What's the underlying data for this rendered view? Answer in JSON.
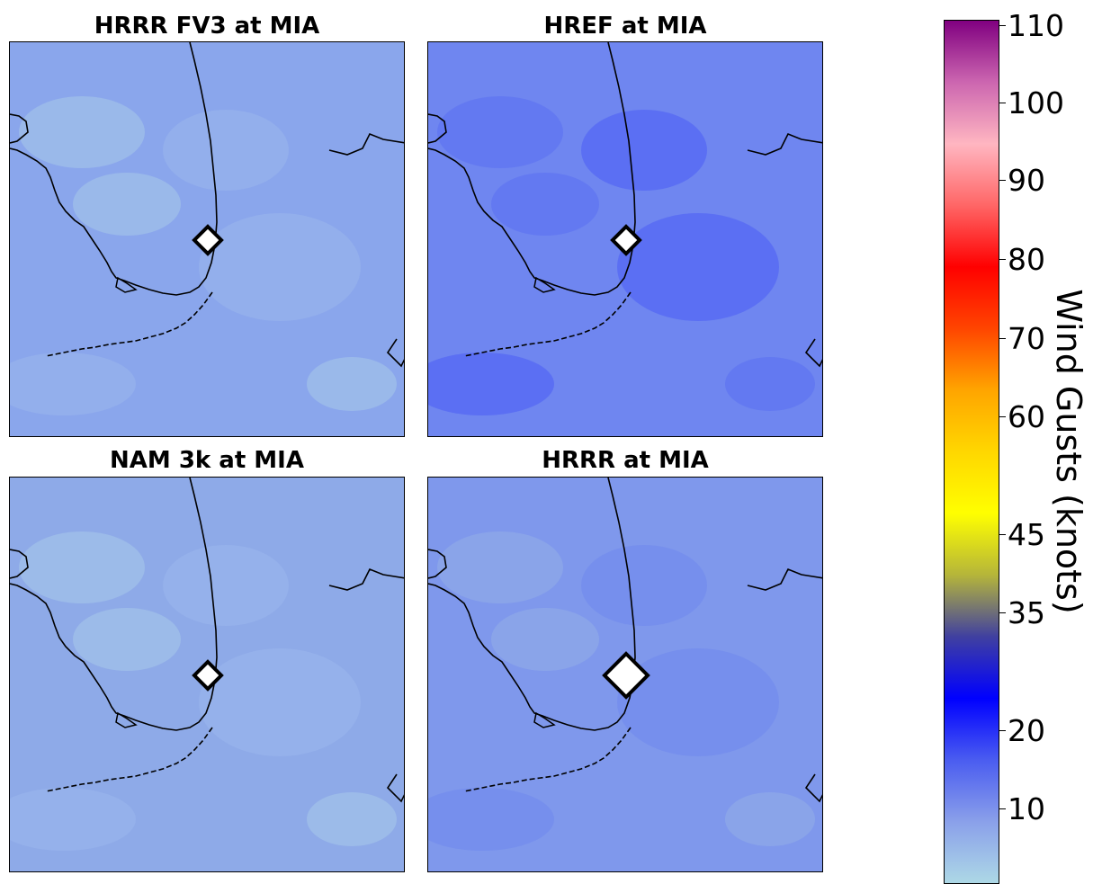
{
  "panels": [
    {
      "title": "HRRR FV3 at MIA",
      "base_color": "#8aa6ec",
      "shade": "light",
      "marker": "normal"
    },
    {
      "title": "HREF at MIA",
      "base_color": "#6f86f0",
      "shade": "dark",
      "marker": "normal"
    },
    {
      "title": "NAM 3k at MIA",
      "base_color": "#8eaae8",
      "shade": "light",
      "marker": "normal"
    },
    {
      "title": "HRRR at MIA",
      "base_color": "#7f98ec",
      "shade": "medium",
      "marker": "large"
    }
  ],
  "colorbar": {
    "label": "Wind Gusts (knots)",
    "ticks": [
      "110",
      "100",
      "90",
      "80",
      "70",
      "60",
      "45",
      "35",
      "20",
      "10"
    ],
    "colors": [
      "#800080",
      "#cc66b0",
      "#ffb6c1",
      "#ff6666",
      "#ff0000",
      "#ff4500",
      "#ffa500",
      "#ffd700",
      "#ffff00",
      "#b5b53a",
      "#4040a0",
      "#0000ff",
      "#4a5cf0",
      "#8aa0ea",
      "#add8e6"
    ]
  },
  "station_marker": "diamond-icon",
  "land_color": "#8aa6ec",
  "coastline_color": "#000000"
}
